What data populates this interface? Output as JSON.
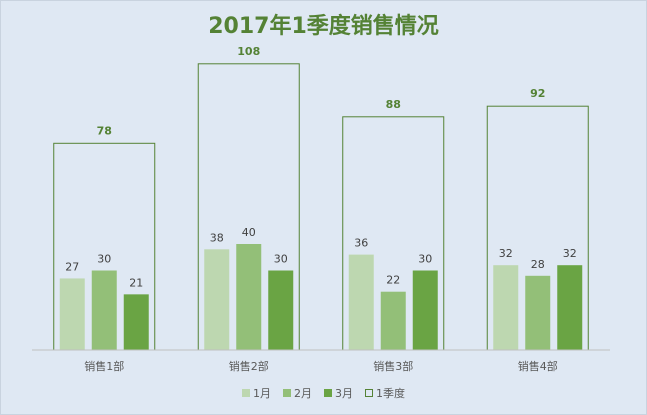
{
  "chart_data": {
    "type": "bar",
    "title": "2017年1季度销售情况",
    "categories": [
      "销售1部",
      "销售2部",
      "销售3部",
      "销售4部"
    ],
    "series": [
      {
        "name": "1月",
        "values": [
          27,
          38,
          36,
          32
        ],
        "color": "#bdd7b0"
      },
      {
        "name": "2月",
        "values": [
          30,
          40,
          22,
          28
        ],
        "color": "#93bf78"
      },
      {
        "name": "3月",
        "values": [
          21,
          30,
          30,
          32
        ],
        "color": "#6aa444"
      }
    ],
    "total_series": {
      "name": "1季度",
      "values": [
        78,
        108,
        88,
        92
      ],
      "color": "#548235"
    },
    "ylim": [
      0,
      120
    ],
    "grid": false,
    "legend_position": "bottom"
  }
}
